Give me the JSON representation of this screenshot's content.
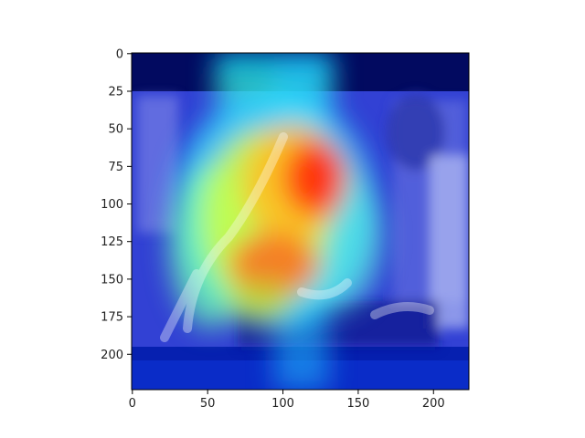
{
  "chart_data": {
    "type": "heatmap",
    "title": "",
    "xlabel": "",
    "ylabel": "",
    "xlim": [
      0,
      224
    ],
    "ylim": [
      224,
      0
    ],
    "x_ticks": [
      {
        "value": 0,
        "label": "0"
      },
      {
        "value": 50,
        "label": "50"
      },
      {
        "value": 100,
        "label": "100"
      },
      {
        "value": 150,
        "label": "150"
      },
      {
        "value": 200,
        "label": "200"
      }
    ],
    "y_ticks": [
      {
        "value": 0,
        "label": "0"
      },
      {
        "value": 25,
        "label": "25"
      },
      {
        "value": 50,
        "label": "50"
      },
      {
        "value": 75,
        "label": "75"
      },
      {
        "value": 100,
        "label": "100"
      },
      {
        "value": 125,
        "label": "125"
      },
      {
        "value": 150,
        "label": "150"
      },
      {
        "value": 175,
        "label": "175"
      },
      {
        "value": 200,
        "label": "200"
      }
    ],
    "grid": false,
    "colormap": "jet",
    "overlay": "attention heatmap on photo of chefs plating food"
  }
}
